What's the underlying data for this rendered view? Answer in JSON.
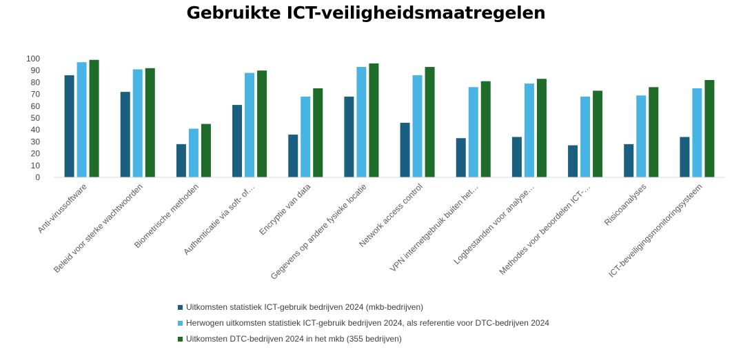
{
  "chart_data": {
    "type": "bar",
    "title": "Gebruikte ICT-veiligheidsmaatregelen",
    "categories": [
      "Anti-virussoftware",
      "Beleid voor sterke wachtwoorden",
      "Biometrische methoden",
      "Authenticatie via soft- of…",
      "Encryptie van data",
      "Gegevens op andere fysieke locatie",
      "Network access control",
      "VPN internetgebruik buiten het…",
      "Logbestanden voor analyse…",
      "Methodes voor beoordelen ICT-…",
      "Risicoanalyses",
      "ICT-beveiligingsmonitoringsysteem"
    ],
    "series": [
      {
        "name": "Uitkomsten statistiek ICT-gebruik bedrijven 2024 (mkb-bedrijven)",
        "color": "#1a5e80",
        "values": [
          86,
          72,
          28,
          61,
          36,
          68,
          46,
          33,
          34,
          27,
          28,
          34
        ]
      },
      {
        "name": "Herwogen uitkomsten statistiek ICT-gebruik bedrijven 2024, als referentie voor DTC-bedrijven 2024",
        "color": "#47b4e3",
        "values": [
          97,
          91,
          41,
          88,
          68,
          93,
          86,
          76,
          79,
          68,
          69,
          75
        ]
      },
      {
        "name": "Uitkomsten DTC-bedrijven 2024 in het mkb (355 bedrijven)",
        "color": "#1e6b2a",
        "values": [
          99,
          92,
          45,
          90,
          75,
          96,
          93,
          81,
          83,
          73,
          76,
          82
        ]
      }
    ],
    "yticks": [
      0,
      10,
      20,
      30,
      40,
      50,
      60,
      70,
      80,
      90,
      100
    ],
    "ylim": [
      0,
      100
    ],
    "grid": false,
    "legend": "bottom"
  }
}
